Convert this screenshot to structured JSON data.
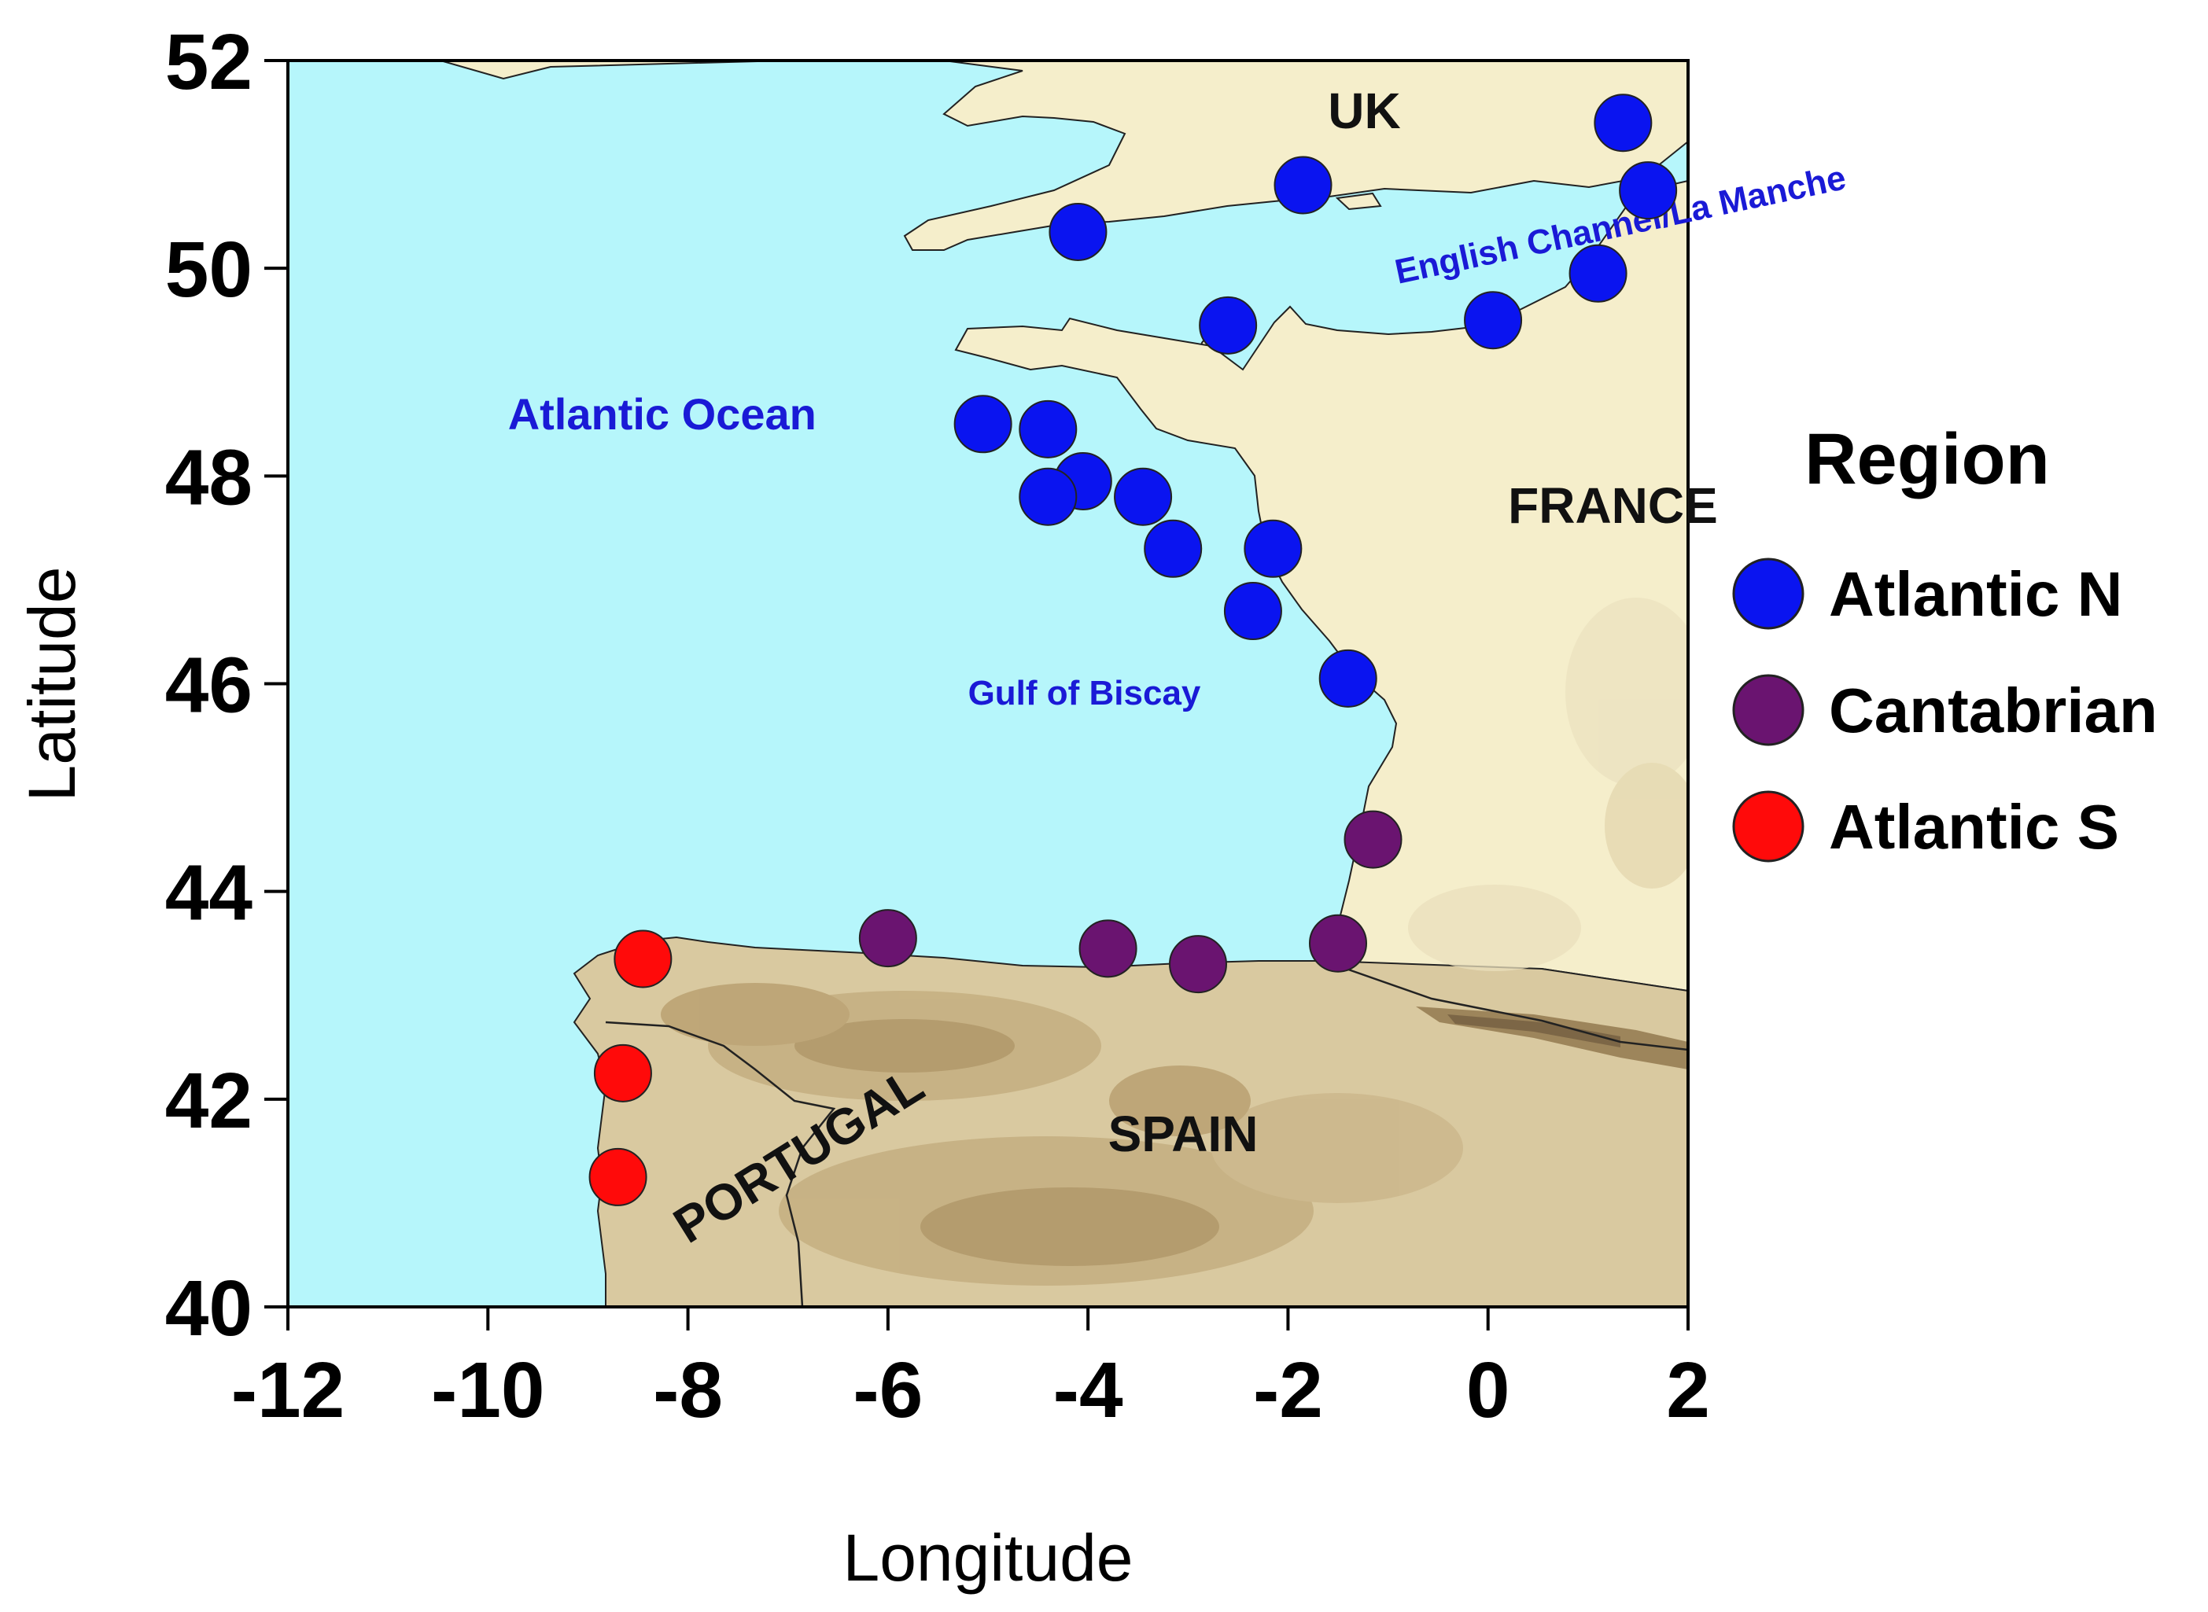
{
  "chart_data": {
    "type": "scatter",
    "xlabel": "Longitude",
    "ylabel": "Latitude",
    "xlim": [
      -12,
      2
    ],
    "ylim": [
      40,
      52
    ],
    "xticks": [
      -12,
      -10,
      -8,
      -6,
      -4,
      -2,
      0,
      2
    ],
    "yticks": [
      40,
      42,
      44,
      46,
      48,
      50,
      52
    ],
    "grid": false,
    "legend_title": "Region",
    "legend_position": "right",
    "colors": {
      "sea": "#b6f6fb",
      "land": "#f5eecb",
      "border": "#000000"
    },
    "series": [
      {
        "name": "Atlantic N",
        "color": "#0a14f0",
        "points": [
          {
            "lon": -4.1,
            "lat": 50.35
          },
          {
            "lon": -1.85,
            "lat": 50.8
          },
          {
            "lon": 1.35,
            "lat": 51.4
          },
          {
            "lon": 1.6,
            "lat": 50.75
          },
          {
            "lon": 1.1,
            "lat": 49.95
          },
          {
            "lon": 0.05,
            "lat": 49.5
          },
          {
            "lon": -2.6,
            "lat": 49.45
          },
          {
            "lon": -5.05,
            "lat": 48.5
          },
          {
            "lon": -4.4,
            "lat": 48.45
          },
          {
            "lon": -4.05,
            "lat": 47.95
          },
          {
            "lon": -4.4,
            "lat": 47.8
          },
          {
            "lon": -3.45,
            "lat": 47.8
          },
          {
            "lon": -3.15,
            "lat": 47.3
          },
          {
            "lon": -2.15,
            "lat": 47.3
          },
          {
            "lon": -2.35,
            "lat": 46.7
          },
          {
            "lon": -1.4,
            "lat": 46.05
          }
        ]
      },
      {
        "name": "Cantabrian",
        "color": "#6a1470",
        "points": [
          {
            "lon": -1.15,
            "lat": 44.5
          },
          {
            "lon": -6.0,
            "lat": 43.55
          },
          {
            "lon": -3.8,
            "lat": 43.45
          },
          {
            "lon": -2.9,
            "lat": 43.3
          },
          {
            "lon": -1.5,
            "lat": 43.5
          }
        ]
      },
      {
        "name": "Atlantic S",
        "color": "#ff0a0a",
        "points": [
          {
            "lon": -8.45,
            "lat": 43.35
          },
          {
            "lon": -8.65,
            "lat": 42.25
          },
          {
            "lon": -8.7,
            "lat": 41.25
          }
        ]
      }
    ],
    "annotations": [
      {
        "text": "UK",
        "lon": -1.6,
        "lat": 51.35
      },
      {
        "text": "FRANCE",
        "lon": 0.2,
        "lat": 47.55
      },
      {
        "text": "SPAIN",
        "lon": -3.8,
        "lat": 41.5
      },
      {
        "text": "PORTUGAL",
        "lon": -8.0,
        "lat": 40.6,
        "rotate": -32
      },
      {
        "text": "Atlantic Ocean",
        "lon": -9.8,
        "lat": 48.45
      },
      {
        "text": "Gulf of Biscay",
        "lon": -5.2,
        "lat": 45.8
      },
      {
        "text": "English Channel/La Manche",
        "lon": -0.9,
        "lat": 49.85,
        "rotate": -12
      }
    ]
  }
}
